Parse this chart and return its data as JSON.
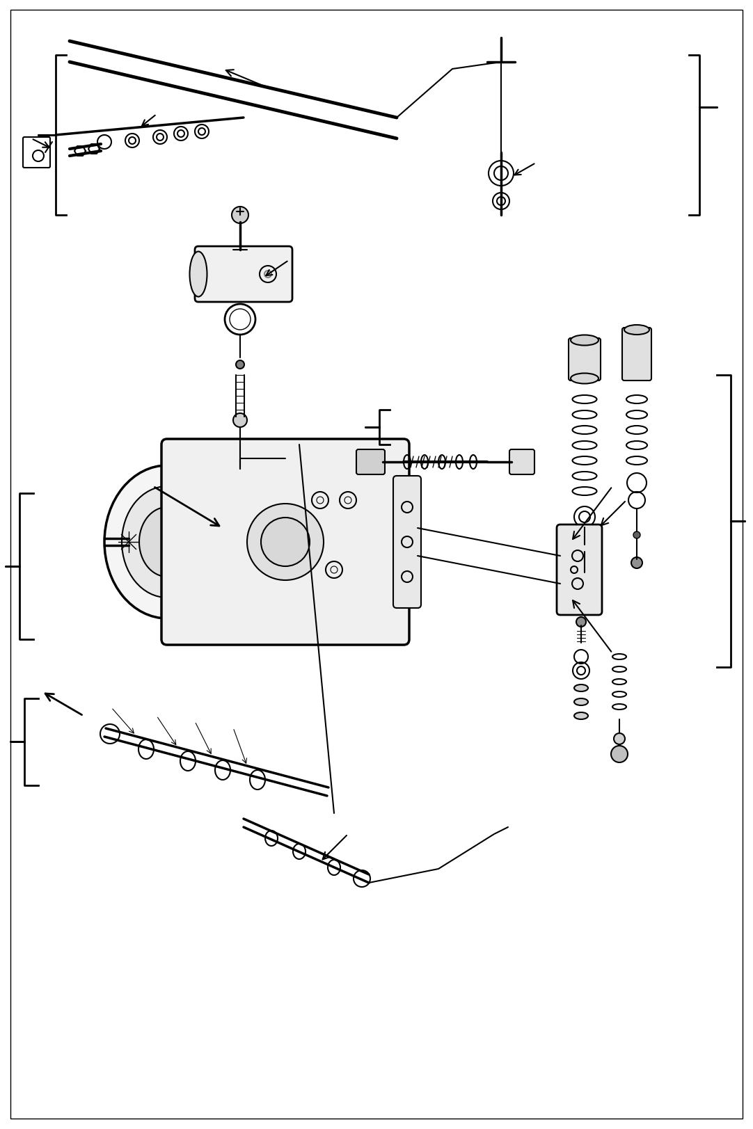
{
  "bg_color": "#ffffff",
  "line_color": "#000000",
  "line_width": 1.5,
  "figsize": [
    10.82,
    16.24
  ],
  "dpi": 100
}
